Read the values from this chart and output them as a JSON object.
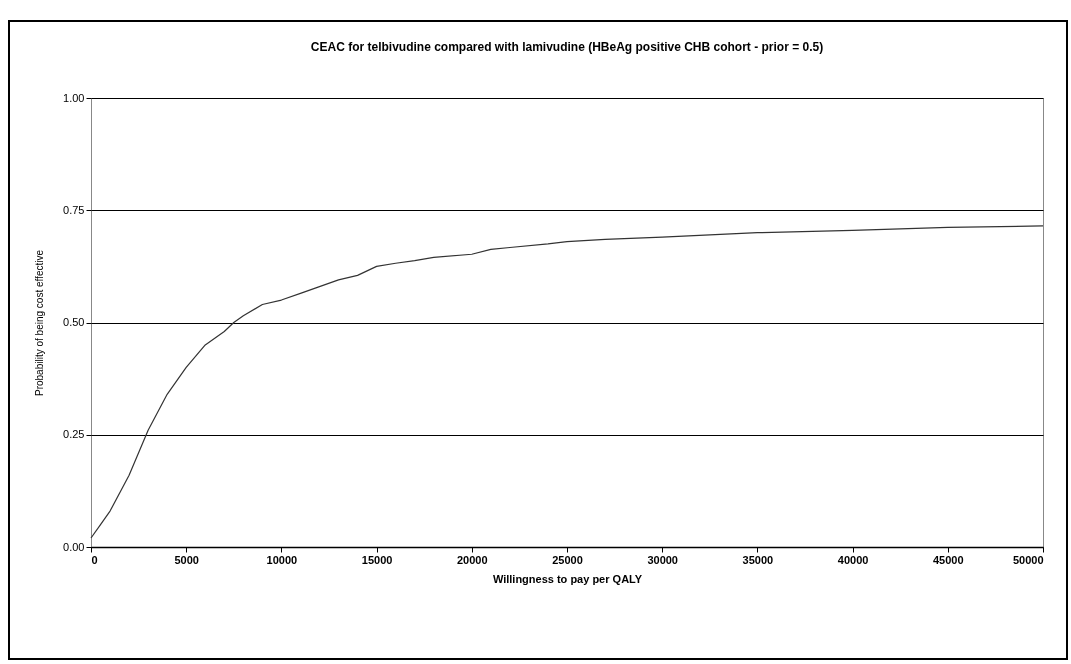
{
  "chart_data": {
    "type": "line",
    "title": "CEAC for telbivudine compared with lamivudine (HBeAg positive CHB cohort - prior = 0.5)",
    "xlabel": "Willingness to pay per QALY",
    "ylabel": "Probability of being cost effective",
    "x": [
      0,
      500,
      1000,
      2000,
      3000,
      4000,
      5000,
      6000,
      7000,
      7500,
      8000,
      9000,
      10000,
      11000,
      12000,
      13000,
      14000,
      15000,
      16000,
      17000,
      18000,
      20000,
      21000,
      22000,
      24000,
      25000,
      27000,
      30000,
      35000,
      40000,
      45000,
      50000
    ],
    "series": [
      {
        "color": "#333333",
        "values": [
          0.02,
          0.05,
          0.08,
          0.16,
          0.26,
          0.34,
          0.4,
          0.45,
          0.48,
          0.5,
          0.515,
          0.54,
          0.55,
          0.565,
          0.58,
          0.595,
          0.605,
          0.625,
          0.632,
          0.638,
          0.645,
          0.652,
          0.663,
          0.667,
          0.675,
          0.68,
          0.685,
          0.69,
          0.7,
          0.705,
          0.712,
          0.715
        ]
      }
    ],
    "xlim": [
      0,
      50000
    ],
    "xticks": [
      0,
      5000,
      10000,
      15000,
      20000,
      25000,
      30000,
      35000,
      40000,
      45000,
      50000
    ],
    "ylim": [
      0,
      1
    ],
    "yticks": [
      {
        "value": 0,
        "label": "0.00"
      },
      {
        "value": 0.25,
        "label": "0.25"
      },
      {
        "value": 0.5,
        "label": "0.50"
      },
      {
        "value": 0.75,
        "label": "0.75"
      },
      {
        "value": 1,
        "label": "1.00"
      }
    ],
    "grid": "y",
    "marker": "none",
    "line_style": "solid"
  }
}
